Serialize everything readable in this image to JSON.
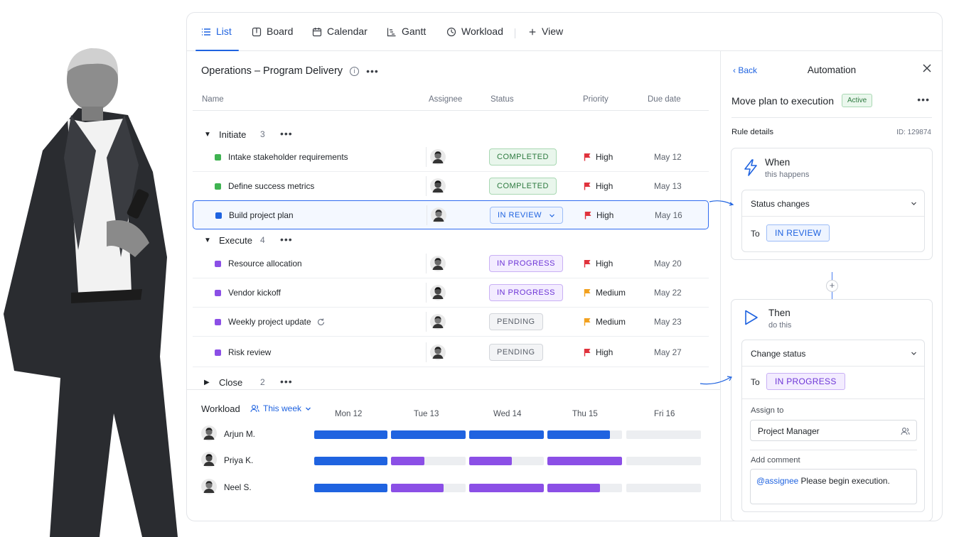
{
  "tabs": [
    {
      "label": "List",
      "icon": "list-icon",
      "active": true
    },
    {
      "label": "Board",
      "icon": "board-icon"
    },
    {
      "label": "Calendar",
      "icon": "calendar-icon"
    },
    {
      "label": "Gantt",
      "icon": "gantt-icon"
    },
    {
      "label": "Workload",
      "icon": "workload-icon"
    },
    {
      "label": "View",
      "icon": "plus-icon"
    }
  ],
  "project": {
    "title": "Operations – Program Delivery"
  },
  "columns": {
    "name": "Name",
    "assignee": "Assignee",
    "status": "Status",
    "priority": "Priority",
    "due": "Due date"
  },
  "groups": [
    {
      "name": "Initiate",
      "count": "3",
      "expanded": true,
      "tasks": [
        {
          "name": "Intake stakeholder requirements",
          "color": "#3fb351",
          "status": "COMPLETED",
          "status_kind": "done",
          "priority": "High",
          "due": "May 12"
        },
        {
          "name": "Define success metrics",
          "color": "#3fb351",
          "status": "COMPLETED",
          "status_kind": "done",
          "priority": "High",
          "due": "May 13"
        },
        {
          "name": "Build project plan",
          "color": "#1f63e0",
          "status": "IN REVIEW",
          "status_kind": "review",
          "priority": "High",
          "due": "May 16"
        }
      ]
    },
    {
      "name": "Execute",
      "count": "4",
      "expanded": true,
      "tasks": [
        {
          "name": "Resource allocation",
          "color": "#8b4fe6",
          "status": "IN PROGRESS",
          "status_kind": "progress",
          "priority": "High",
          "due": "May 20"
        },
        {
          "name": "Vendor kickoff",
          "color": "#8b4fe6",
          "status": "IN PROGRESS",
          "status_kind": "progress",
          "priority": "Medium",
          "due": "May 22"
        },
        {
          "name": "Weekly project update",
          "color": "#8b4fe6",
          "status": "PENDING",
          "status_kind": "pending",
          "priority": "Medium",
          "due": "May 23"
        },
        {
          "name": "Risk review",
          "color": "#8b4fe6",
          "status": "PENDING",
          "status_kind": "pending",
          "priority": "High",
          "due": "May 27"
        }
      ]
    },
    {
      "name": "Close",
      "count": "2",
      "expanded": false,
      "tasks": []
    }
  ],
  "colors": {
    "accent": "#1f63e0",
    "high": "#e0323c",
    "medium": "#f2a11f",
    "purple": "#8b4fe6"
  },
  "workload": {
    "title": "Workload",
    "range": "This week",
    "days": [
      "Mon 12",
      "Tue 13",
      "Wed 14",
      "Thu 15",
      "Fri 16"
    ],
    "people": [
      {
        "name": "Arjun M.",
        "load": [
          1,
          1,
          1,
          0.84,
          0
        ],
        "colors": [
          "blue",
          "blue",
          "blue",
          "blue",
          "blue"
        ]
      },
      {
        "name": "Priya K.",
        "load": [
          1,
          0.45,
          0.57,
          1,
          0
        ],
        "colors": [
          "blue",
          "purple",
          "purple",
          "purple",
          "blue"
        ]
      },
      {
        "name": "Neel S.",
        "load": [
          1,
          0.7,
          1,
          0.7,
          0
        ],
        "colors": [
          "blue",
          "purple",
          "purple",
          "purple",
          "blue"
        ]
      }
    ]
  },
  "automation": {
    "back": "Back",
    "title": "Automation",
    "rule_name": "Move plan to execution",
    "rule_state": "Active",
    "details_label": "Rule details",
    "rule_id": "ID: 129874",
    "when": {
      "title": "When",
      "subtitle": "this happens",
      "trigger": "Status changes",
      "to_label": "To",
      "to_value": "IN REVIEW"
    },
    "then": {
      "title": "Then",
      "subtitle": "do this",
      "action": "Change status",
      "to_label": "To",
      "to_value": "IN PROGRESS",
      "assign_label": "Assign to",
      "assign_value": "Project Manager",
      "comment_label": "Add comment",
      "comment_mention": "@assignee",
      "comment_text": " Please begin execution."
    }
  }
}
